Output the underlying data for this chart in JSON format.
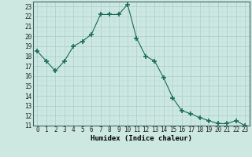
{
  "x": [
    0,
    1,
    2,
    3,
    4,
    5,
    6,
    7,
    8,
    9,
    10,
    11,
    12,
    13,
    14,
    15,
    16,
    17,
    18,
    19,
    20,
    21,
    22,
    23
  ],
  "y": [
    18.5,
    17.5,
    16.5,
    17.5,
    19.0,
    19.5,
    20.2,
    22.2,
    22.2,
    22.2,
    23.2,
    19.8,
    18.0,
    17.5,
    15.8,
    13.8,
    12.5,
    12.2,
    11.8,
    11.5,
    11.2,
    11.2,
    11.5,
    11.0
  ],
  "line_color": "#1a6b5a",
  "marker": "+",
  "marker_size": 4,
  "bg_color": "#cce8e0",
  "grid_major_color": "#aacccc",
  "grid_minor_color": "#bbdddd",
  "xlabel": "Humidex (Indice chaleur)",
  "xlim": [
    -0.5,
    23.5
  ],
  "ylim": [
    11,
    23.5
  ],
  "yticks": [
    11,
    12,
    13,
    14,
    15,
    16,
    17,
    18,
    19,
    20,
    21,
    22,
    23
  ],
  "xticks": [
    0,
    1,
    2,
    3,
    4,
    5,
    6,
    7,
    8,
    9,
    10,
    11,
    12,
    13,
    14,
    15,
    16,
    17,
    18,
    19,
    20,
    21,
    22,
    23
  ],
  "label_fontsize": 6.5,
  "tick_fontsize": 5.5
}
